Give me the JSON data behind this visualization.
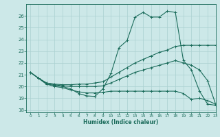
{
  "xlabel": "Humidex (Indice chaleur)",
  "xlim": [
    -0.5,
    23
  ],
  "ylim": [
    17.8,
    27.0
  ],
  "yticks": [
    18,
    19,
    20,
    21,
    22,
    23,
    24,
    25,
    26
  ],
  "xticks": [
    0,
    1,
    2,
    3,
    4,
    5,
    6,
    7,
    8,
    9,
    10,
    11,
    12,
    13,
    14,
    15,
    16,
    17,
    18,
    19,
    20,
    21,
    22,
    23
  ],
  "bg_color": "#cce8e8",
  "grid_color": "#aad0d0",
  "line_color": "#1a6b5a",
  "lines": [
    {
      "x": [
        0,
        1,
        2,
        3,
        4,
        5,
        6,
        7,
        8,
        9,
        10,
        11,
        12,
        13,
        14,
        15,
        16,
        17,
        18,
        19,
        20,
        21,
        22,
        23
      ],
      "y": [
        21.2,
        20.7,
        20.2,
        20.1,
        20.0,
        19.8,
        19.4,
        19.2,
        19.15,
        19.8,
        21.1,
        23.3,
        23.9,
        25.9,
        26.3,
        25.9,
        25.9,
        26.4,
        26.3,
        22.2,
        21.4,
        19.6,
        18.5,
        18.4
      ]
    },
    {
      "x": [
        0,
        1,
        2,
        3,
        4,
        5,
        6,
        7,
        8,
        9,
        10,
        11,
        12,
        13,
        14,
        15,
        16,
        17,
        18,
        19,
        20,
        21,
        22,
        23
      ],
      "y": [
        21.2,
        20.7,
        20.3,
        20.2,
        20.15,
        20.15,
        20.2,
        20.2,
        20.3,
        20.4,
        20.8,
        21.2,
        21.6,
        22.0,
        22.3,
        22.6,
        22.9,
        23.1,
        23.4,
        23.5,
        23.5,
        23.5,
        23.5,
        23.5
      ]
    },
    {
      "x": [
        0,
        1,
        2,
        3,
        4,
        5,
        6,
        7,
        8,
        9,
        10,
        11,
        12,
        13,
        14,
        15,
        16,
        17,
        18,
        19,
        20,
        21,
        22,
        23
      ],
      "y": [
        21.2,
        20.7,
        20.3,
        20.15,
        20.05,
        20.0,
        20.0,
        20.0,
        20.0,
        20.05,
        20.3,
        20.6,
        20.9,
        21.2,
        21.4,
        21.6,
        21.8,
        22.0,
        22.2,
        22.0,
        21.8,
        21.4,
        20.5,
        18.5
      ]
    },
    {
      "x": [
        0,
        1,
        2,
        3,
        4,
        5,
        6,
        7,
        8,
        9,
        10,
        11,
        12,
        13,
        14,
        15,
        16,
        17,
        18,
        19,
        20,
        21,
        22,
        23
      ],
      "y": [
        21.2,
        20.7,
        20.2,
        20.0,
        19.9,
        19.7,
        19.55,
        19.45,
        19.45,
        19.5,
        19.6,
        19.6,
        19.6,
        19.6,
        19.6,
        19.6,
        19.6,
        19.6,
        19.6,
        19.4,
        18.9,
        19.0,
        18.8,
        18.5
      ]
    }
  ]
}
